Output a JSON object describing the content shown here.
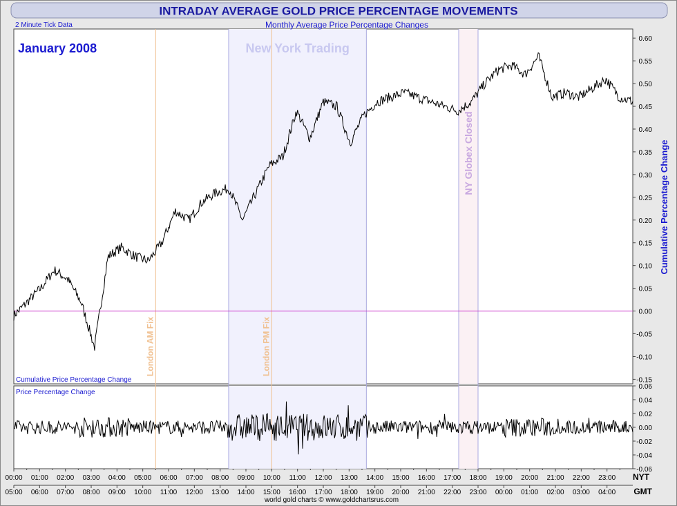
{
  "chart_data": [
    {
      "type": "line",
      "title": "INTRADAY AVERAGE GOLD PRICE PERCENTAGE MOVEMENTS",
      "subtitle": "Monthly Average Price Percentage Changes",
      "tick_data_note": "2 Minute Tick Data",
      "month_label": "January 2008",
      "panel_label": "Cumulative Price Percentage Change",
      "ylabel": "Cumulative Percentage Change",
      "ylim": [
        -0.16,
        0.62
      ],
      "yticks": [
        "0.60",
        "0.55",
        "0.50",
        "0.45",
        "0.40",
        "0.35",
        "0.30",
        "0.25",
        "0.20",
        "0.15",
        "0.10",
        "0.05",
        "0.00",
        "-0.05",
        "-0.10",
        "-0.15"
      ],
      "ytick_values": [
        0.6,
        0.55,
        0.5,
        0.45,
        0.4,
        0.35,
        0.3,
        0.25,
        0.2,
        0.15,
        0.1,
        0.05,
        0.0,
        -0.05,
        -0.1,
        -0.15
      ],
      "zero_line_color": "#cc33cc",
      "line_color": "#000000",
      "x_hours_nyt": [
        0,
        1,
        2,
        3,
        4,
        5,
        6,
        7,
        8,
        9,
        10,
        11,
        12,
        13,
        14,
        15,
        16,
        17,
        18,
        19,
        20,
        21,
        22,
        23,
        24
      ],
      "y": [
        -0.01,
        0.02,
        0.05,
        0.09,
        0.07,
        0.02,
        -0.08,
        0.12,
        0.14,
        0.12,
        0.11,
        0.15,
        0.22,
        0.2,
        0.24,
        0.26,
        0.27,
        0.2,
        0.26,
        0.32,
        0.34,
        0.44,
        0.38,
        0.46,
        0.45,
        0.37,
        0.43,
        0.46,
        0.47,
        0.48,
        0.47,
        0.46,
        0.45,
        0.44,
        0.46,
        0.5,
        0.53,
        0.54,
        0.52,
        0.56,
        0.47,
        0.48,
        0.47,
        0.49,
        0.51,
        0.47,
        0.46
      ],
      "annotations": [
        {
          "label": "New York Trading",
          "from_hour": 8.33,
          "to_hour": 13.67,
          "color": "#c8c8f0"
        },
        {
          "label": "NY Globex Closed",
          "from_hour": 17.25,
          "to_hour": 18.0,
          "color": "#c8a8e0"
        },
        {
          "label": "London AM Fix",
          "at_hour": 5.5,
          "color": "#f0c090"
        },
        {
          "label": "London PM Fix",
          "at_hour": 10.0,
          "color": "#f0c090"
        }
      ]
    },
    {
      "type": "line",
      "panel_label": "Price Percentage Change",
      "ylim": [
        -0.06,
        0.06
      ],
      "yticks": [
        "0.06",
        "0.04",
        "0.02",
        "0.00",
        "-0.02",
        "-0.04",
        "-0.06"
      ],
      "ytick_values": [
        0.06,
        0.04,
        0.02,
        0.0,
        -0.02,
        -0.04,
        -0.06
      ],
      "amplitude": {
        "quiet": 0.01,
        "active": 0.02,
        "max": 0.045
      }
    }
  ],
  "x_axis": {
    "nyt_label": "NYT",
    "gmt_label": "GMT",
    "nyt_ticks": [
      "00:00",
      "01:00",
      "02:00",
      "03:00",
      "04:00",
      "05:00",
      "06:00",
      "07:00",
      "08:00",
      "09:00",
      "10:00",
      "11:00",
      "12:00",
      "13:00",
      "14:00",
      "15:00",
      "16:00",
      "17:00",
      "18:00",
      "19:00",
      "20:00",
      "21:00",
      "22:00",
      "23:00"
    ],
    "gmt_ticks": [
      "05:00",
      "06:00",
      "07:00",
      "08:00",
      "09:00",
      "10:00",
      "11:00",
      "12:00",
      "13:00",
      "14:00",
      "15:00",
      "16:00",
      "17:00",
      "18:00",
      "19:00",
      "20:00",
      "21:00",
      "22:00",
      "23:00",
      "00:00",
      "01:00",
      "02:00",
      "03:00",
      "04:00"
    ]
  },
  "footer": "world gold charts © www.goldchartsrus.com",
  "colors": {
    "title_text": "#1a1aa0",
    "title_bg": "#cfd3e6",
    "axis_label_blue": "#1a1ad0",
    "frame_bg": "#e6e6e6"
  }
}
